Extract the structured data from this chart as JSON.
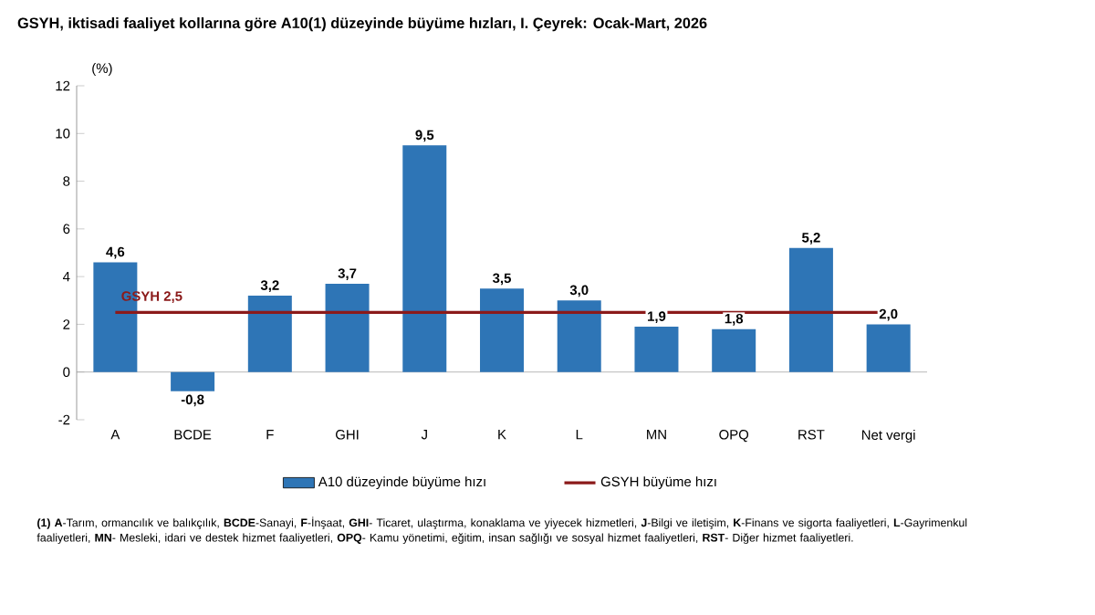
{
  "chart_data": {
    "type": "bar",
    "title": "GSYH, iktisadi faaliyet kollarına göre A10(1) düzeyinde büyüme hızları, I. Çeyrek: Ocak-Mart, 2026",
    "ylabel": "(%)",
    "categories": [
      "A",
      "BCDE",
      "F",
      "GHI",
      "J",
      "K",
      "L",
      "MN",
      "OPQ",
      "RST",
      "Net vergi"
    ],
    "series": [
      {
        "name": "A10 düzeyinde büyüme hızı",
        "color": "#2e75b6",
        "values": [
          4.6,
          -0.8,
          3.2,
          3.7,
          9.5,
          3.5,
          3.0,
          1.9,
          1.8,
          5.2,
          2.0
        ],
        "value_labels": [
          "4,6",
          "-0,8",
          "3,2",
          "3,7",
          "9,5",
          "3,5",
          "3,0",
          "1,9",
          "1,8",
          "5,2",
          "2,0"
        ]
      },
      {
        "name": "GSYH büyüme hızı",
        "type": "line",
        "color": "#8b1a1a",
        "values": [
          2.5,
          2.5,
          2.5,
          2.5,
          2.5,
          2.5,
          2.5,
          2.5,
          2.5,
          2.5,
          2.5
        ]
      }
    ],
    "ref_lines": [
      {
        "axis": "y",
        "value": 0,
        "color": "#a6a6a6"
      }
    ],
    "ylim": [
      -2,
      12
    ],
    "yticks": [
      -2,
      0,
      2,
      4,
      6,
      8,
      10,
      12
    ],
    "grid": false,
    "legend": "bottom",
    "marker": "none",
    "line_style": "solid",
    "annotations": [
      {
        "text": "GSYH 2,5",
        "x": "A",
        "y": 2.5
      },
      "**(1)** **A**-Tarım, ormancılık ve balıkçılık, **BCDE**-Sanayi, **F**-İnşaat, **GHI**- Ticaret, ulaştırma, konaklama ve yiyecek hizmetleri, **J**-Bilgi ve iletişim, **K**-Finans ve sigorta faaliyetleri, **L**-Gayrimenkul faaliyetleri, **MN**- Mesleki, idari ve destek hizmet faaliyetleri, **OPQ**- Kamu yönetimi, eğitim, insan sağlığı ve sosyal hizmet faaliyetleri, **RST**- Diğer hizmet faaliyetleri."
    ]
  }
}
